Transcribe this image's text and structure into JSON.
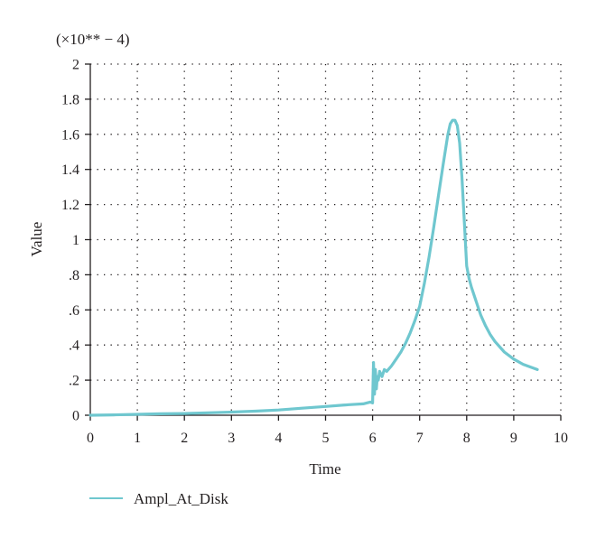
{
  "chart_data": {
    "type": "line",
    "y_multiplier_label": "(×10** − 4)",
    "xlabel": "Time",
    "ylabel": "Value",
    "xlim": [
      0,
      10
    ],
    "ylim": [
      0,
      2
    ],
    "x_ticks": [
      0,
      1,
      2,
      3,
      4,
      5,
      6,
      7,
      8,
      9,
      10
    ],
    "x_tick_labels": [
      "0",
      "1",
      "2",
      "3",
      "4",
      "5",
      "6",
      "7",
      "8",
      "9",
      "10"
    ],
    "y_ticks": [
      0,
      0.2,
      0.4,
      0.6,
      0.8,
      1.0,
      1.2,
      1.4,
      1.6,
      1.8,
      2.0
    ],
    "y_tick_labels": [
      "0",
      ".2",
      ".4",
      ".6",
      ".8",
      "1",
      "1.2",
      "1.4",
      "1.6",
      "1.8",
      "2"
    ],
    "grid": true,
    "legend_position": "bottom-left",
    "series_color": "#6fc7cf",
    "series": [
      {
        "name": "Ampl_At_Disk",
        "x": [
          0,
          0.5,
          1,
          1.5,
          2,
          2.5,
          3,
          3.5,
          4,
          4.5,
          5,
          5.5,
          5.8,
          5.95,
          6.0,
          6.02,
          6.04,
          6.06,
          6.08,
          6.1,
          6.12,
          6.15,
          6.2,
          6.25,
          6.3,
          6.4,
          6.5,
          6.6,
          6.7,
          6.8,
          6.9,
          7.0,
          7.1,
          7.2,
          7.3,
          7.4,
          7.5,
          7.6,
          7.65,
          7.7,
          7.75,
          7.8,
          7.85,
          7.9,
          7.95,
          8.0,
          8.05,
          8.1,
          8.2,
          8.3,
          8.4,
          8.5,
          8.6,
          8.8,
          9.0,
          9.2,
          9.5
        ],
        "y": [
          0.0,
          0.002,
          0.005,
          0.008,
          0.01,
          0.014,
          0.018,
          0.023,
          0.03,
          0.04,
          0.05,
          0.06,
          0.065,
          0.075,
          0.07,
          0.3,
          0.12,
          0.26,
          0.15,
          0.22,
          0.2,
          0.25,
          0.22,
          0.26,
          0.25,
          0.28,
          0.32,
          0.36,
          0.41,
          0.47,
          0.54,
          0.62,
          0.75,
          0.9,
          1.07,
          1.25,
          1.43,
          1.6,
          1.66,
          1.68,
          1.68,
          1.65,
          1.55,
          1.35,
          1.1,
          0.85,
          0.78,
          0.73,
          0.65,
          0.57,
          0.51,
          0.46,
          0.42,
          0.36,
          0.32,
          0.29,
          0.26
        ]
      }
    ]
  }
}
